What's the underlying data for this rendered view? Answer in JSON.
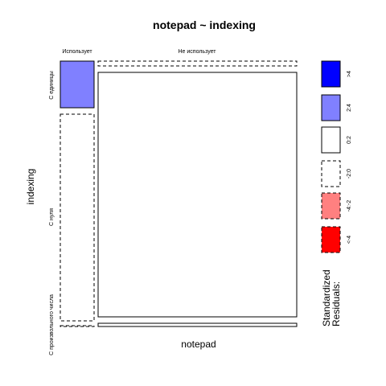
{
  "chart_data": {
    "type": "mosaic",
    "title": "notepad ~ indexing",
    "xlabel": "notepad",
    "ylabel": "indexing",
    "x_categories": [
      "Использует",
      "Не использует"
    ],
    "y_categories": [
      "С единицы",
      "С нуля",
      "С произвольного числа"
    ],
    "cells": [
      {
        "notepad": "Использует",
        "indexing": "С единицы",
        "shade": "2:4"
      },
      {
        "notepad": "Использует",
        "indexing": "С нуля",
        "shade": "-2:0"
      },
      {
        "notepad": "Использует",
        "indexing": "С произвольного числа",
        "shade": "-2:0"
      },
      {
        "notepad": "Не использует",
        "indexing": "С единицы",
        "shade": "-2:0"
      },
      {
        "notepad": "Не использует",
        "indexing": "С нуля",
        "shade": "0:2"
      },
      {
        "notepad": "Не использует",
        "indexing": "С произвольного числа",
        "shade": "0:2"
      }
    ],
    "legend": {
      "title": [
        "Standardized",
        "Residuals:"
      ],
      "entries": [
        {
          "label": ">4",
          "fill": "#0000ff",
          "border": "solid"
        },
        {
          "label": "2:4",
          "fill": "#8080ff",
          "border": "solid"
        },
        {
          "label": "0:2",
          "fill": "#ffffff",
          "border": "solid"
        },
        {
          "label": "-2:0",
          "fill": "#ffffff",
          "border": "dashed"
        },
        {
          "label": "-4:-2",
          "fill": "#ff8080",
          "border": "dashed"
        },
        {
          "label": "<-4",
          "fill": "#ff0000",
          "border": "dashed"
        }
      ]
    }
  }
}
